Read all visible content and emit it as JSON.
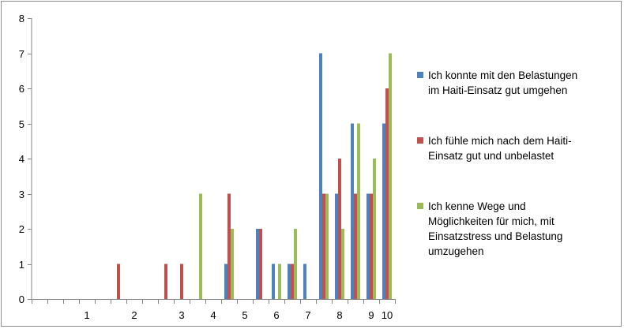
{
  "chart_data": {
    "type": "bar",
    "categories": [
      "1",
      "2",
      "3",
      "4",
      "5",
      "6",
      "7",
      "8",
      "9",
      "10"
    ],
    "ylim": [
      0,
      8
    ],
    "y_ticks": [
      "0",
      "1",
      "2",
      "3",
      "4",
      "5",
      "6",
      "7",
      "8"
    ],
    "grid": false,
    "legend_position": "right",
    "bar_groups": [
      {
        "label": "",
        "values": [
          0,
          0,
          0
        ]
      },
      {
        "label": "",
        "values": [
          0,
          0,
          0
        ]
      },
      {
        "label": "",
        "values": [
          0,
          0,
          0
        ]
      },
      {
        "label": "1",
        "values": [
          0,
          0,
          0
        ]
      },
      {
        "label": "",
        "values": [
          0,
          0,
          0
        ]
      },
      {
        "label": "",
        "values": [
          0,
          1,
          0
        ]
      },
      {
        "label": "2",
        "values": [
          0,
          0,
          0
        ]
      },
      {
        "label": "",
        "values": [
          0,
          0,
          0
        ]
      },
      {
        "label": "",
        "values": [
          0,
          1,
          0
        ]
      },
      {
        "label": "3",
        "values": [
          0,
          1,
          0
        ]
      },
      {
        "label": "",
        "values": [
          0,
          0,
          3
        ]
      },
      {
        "label": "4",
        "values": [
          0,
          0,
          0
        ]
      },
      {
        "label": "",
        "values": [
          1,
          3,
          2
        ]
      },
      {
        "label": "5",
        "values": [
          0,
          0,
          0
        ]
      },
      {
        "label": "",
        "values": [
          2,
          2,
          0
        ]
      },
      {
        "label": "6",
        "values": [
          1,
          0,
          1
        ]
      },
      {
        "label": "",
        "values": [
          1,
          1,
          2
        ]
      },
      {
        "label": "7",
        "values": [
          1,
          0,
          0
        ]
      },
      {
        "label": "",
        "values": [
          7,
          3,
          3
        ]
      },
      {
        "label": "8",
        "values": [
          3,
          4,
          2
        ]
      },
      {
        "label": "",
        "values": [
          5,
          3,
          5
        ]
      },
      {
        "label": "9",
        "values": [
          3,
          3,
          4
        ]
      },
      {
        "label": "10",
        "values": [
          5,
          6,
          7
        ]
      }
    ],
    "series": [
      {
        "name": "Ich konnte mit den Belastungen im Haiti-Einsatz gut umgehen",
        "color": "#4f81bd"
      },
      {
        "name": "Ich fühle mich nach dem Haiti-Einsatz gut und unbelastet",
        "color": "#c0504d"
      },
      {
        "name": "Ich kenne Wege und Möglichkeiten für mich, mit Einsatzstress und Belastung umzugehen",
        "color": "#9bbb59"
      }
    ]
  },
  "legend": {
    "items": [
      {
        "line1": "Ich konnte mit den Belastungen",
        "line2": "im Haiti-Einsatz gut umgehen",
        "line3": "",
        "line4": "",
        "color": "#4f81bd"
      },
      {
        "line1": "Ich fühle mich nach dem Haiti-",
        "line2": "Einsatz gut und unbelastet",
        "line3": "",
        "line4": "",
        "color": "#c0504d"
      },
      {
        "line1": "Ich kenne Wege und",
        "line2": "Möglichkeiten für mich, mit",
        "line3": "Einsatzstress und Belastung",
        "line4": "umzugehen",
        "color": "#9bbb59"
      }
    ]
  }
}
